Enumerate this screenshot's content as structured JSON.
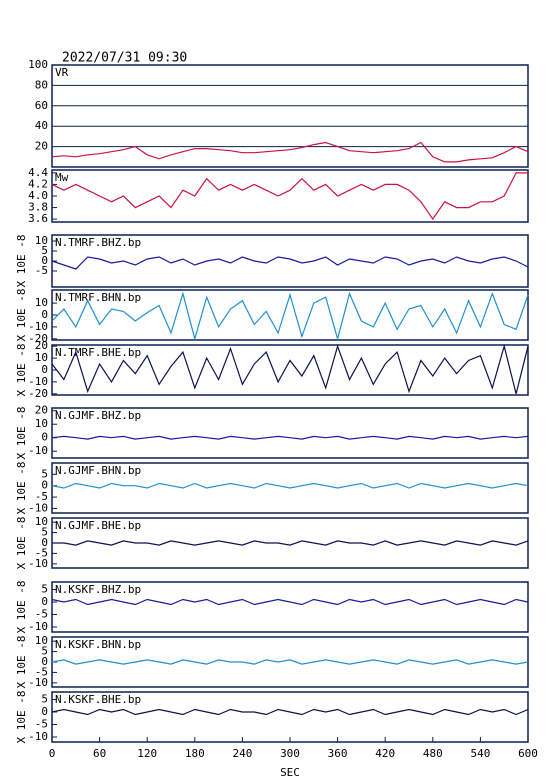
{
  "header": {
    "title": "2022/07/31 09:30",
    "xlabel": "SEC",
    "xlim": [
      0,
      600
    ],
    "xticks": [
      0,
      60,
      120,
      180,
      240,
      300,
      360,
      420,
      480,
      540,
      600
    ]
  },
  "chart_data": [
    {
      "type": "line",
      "label": "VR",
      "color": "#cc1144",
      "grid": true,
      "ylim": [
        0,
        100
      ],
      "yticks": [
        20,
        40,
        60,
        80,
        100
      ],
      "x": [
        0,
        15,
        30,
        45,
        60,
        75,
        90,
        105,
        120,
        135,
        150,
        165,
        180,
        195,
        210,
        225,
        240,
        255,
        270,
        285,
        300,
        315,
        330,
        345,
        360,
        375,
        390,
        405,
        420,
        435,
        450,
        465,
        480,
        495,
        510,
        525,
        540,
        555,
        570,
        585,
        600
      ],
      "values": [
        10,
        11,
        10,
        12,
        13,
        15,
        17,
        20,
        12,
        8,
        12,
        15,
        18,
        18,
        17,
        16,
        14,
        14,
        15,
        16,
        17,
        19,
        22,
        24,
        20,
        16,
        15,
        14,
        15,
        16,
        18,
        24,
        10,
        5,
        5,
        7,
        8,
        9,
        14,
        20,
        15
      ]
    },
    {
      "type": "line",
      "label": "Mw",
      "color": "#cc1144",
      "grid": false,
      "ylim": [
        3.55,
        4.45
      ],
      "yticks": [
        3.6,
        3.8,
        {
          "value": 4.0,
          "label": "4.0"
        },
        4.2,
        4.4
      ],
      "x": [
        0,
        15,
        30,
        45,
        60,
        75,
        90,
        105,
        120,
        135,
        150,
        165,
        180,
        195,
        210,
        225,
        240,
        255,
        270,
        285,
        300,
        315,
        330,
        345,
        360,
        375,
        390,
        405,
        420,
        435,
        450,
        465,
        480,
        495,
        510,
        525,
        540,
        555,
        570,
        585,
        600
      ],
      "values": [
        4.2,
        4.1,
        4.2,
        4.1,
        4.0,
        3.9,
        4.0,
        3.8,
        3.9,
        4.0,
        3.8,
        4.1,
        4.0,
        4.3,
        4.1,
        4.2,
        4.1,
        4.2,
        4.1,
        4.0,
        4.1,
        4.3,
        4.1,
        4.2,
        4.0,
        4.1,
        4.2,
        4.1,
        4.2,
        4.2,
        4.1,
        3.9,
        3.6,
        3.9,
        3.8,
        3.8,
        3.9,
        3.9,
        4.0,
        4.4,
        4.4
      ]
    },
    {
      "type": "line",
      "label": "N.TMRF.BHZ.bp",
      "ylabel": "X 10E -8",
      "color": "#1a1aa0",
      "grid": false,
      "ylim": [
        -13,
        13
      ],
      "yticks": [
        -5,
        0,
        5,
        10
      ],
      "x": [
        0,
        15,
        30,
        45,
        60,
        75,
        90,
        105,
        120,
        135,
        150,
        165,
        180,
        195,
        210,
        225,
        240,
        255,
        270,
        285,
        300,
        315,
        330,
        345,
        360,
        375,
        390,
        405,
        420,
        435,
        450,
        465,
        480,
        495,
        510,
        525,
        540,
        555,
        570,
        585,
        600
      ],
      "values": [
        0,
        -2,
        -4,
        2,
        1,
        -1,
        0,
        -2,
        1,
        2,
        -1,
        1,
        -2,
        0,
        1,
        -1,
        2,
        0,
        -1,
        2,
        1,
        -1,
        0,
        2,
        -2,
        1,
        0,
        -1,
        2,
        1,
        -2,
        0,
        1,
        -1,
        2,
        0,
        -1,
        1,
        2,
        0,
        -3
      ]
    },
    {
      "type": "line",
      "label": "N.TMRF.BHN.bp",
      "ylabel": "X 10E -8",
      "color": "#2090d0",
      "grid": false,
      "ylim": [
        -21,
        21
      ],
      "yticks": [
        -20,
        -10,
        0,
        10
      ],
      "x": [
        0,
        15,
        30,
        45,
        60,
        75,
        90,
        105,
        120,
        135,
        150,
        165,
        180,
        195,
        210,
        225,
        240,
        255,
        270,
        285,
        300,
        315,
        330,
        345,
        360,
        375,
        390,
        405,
        420,
        435,
        450,
        465,
        480,
        495,
        510,
        525,
        540,
        555,
        570,
        585,
        600
      ],
      "values": [
        -5,
        5,
        -10,
        12,
        -8,
        5,
        3,
        -5,
        2,
        8,
        -15,
        18,
        -20,
        15,
        -10,
        5,
        12,
        -8,
        3,
        -15,
        17,
        -18,
        10,
        15,
        -20,
        18,
        -5,
        -10,
        10,
        -12,
        5,
        8,
        -10,
        5,
        -15,
        12,
        -10,
        18,
        -8,
        -12,
        17
      ]
    },
    {
      "type": "line",
      "label": "N.TMRF.BHE.bp",
      "ylabel": "X 10E -8",
      "color": "#101050",
      "grid": false,
      "ylim": [
        -21,
        21
      ],
      "yticks": [
        -20,
        -10,
        0,
        10,
        20
      ],
      "x": [
        0,
        15,
        30,
        45,
        60,
        75,
        90,
        105,
        120,
        135,
        150,
        165,
        180,
        195,
        210,
        225,
        240,
        255,
        270,
        285,
        300,
        315,
        330,
        345,
        360,
        375,
        390,
        405,
        420,
        435,
        450,
        465,
        480,
        495,
        510,
        525,
        540,
        555,
        570,
        585,
        600
      ],
      "values": [
        5,
        -8,
        15,
        -18,
        5,
        -10,
        8,
        -3,
        12,
        -12,
        3,
        15,
        -15,
        10,
        -8,
        18,
        -12,
        5,
        15,
        -10,
        8,
        -5,
        12,
        -15,
        20,
        -8,
        10,
        -12,
        5,
        15,
        -18,
        8,
        -5,
        10,
        -3,
        8,
        12,
        -15,
        20,
        -20,
        20
      ]
    },
    {
      "type": "line",
      "label": "N.GJMF.BHZ.bp",
      "ylabel": "X 10E -8",
      "color": "#1a1aa0",
      "grid": false,
      "ylim": [
        -15,
        22
      ],
      "yticks": [
        -10,
        0,
        10,
        20
      ],
      "x": [
        0,
        15,
        30,
        45,
        60,
        75,
        90,
        105,
        120,
        135,
        150,
        165,
        180,
        195,
        210,
        225,
        240,
        255,
        270,
        285,
        300,
        315,
        330,
        345,
        360,
        375,
        390,
        405,
        420,
        435,
        450,
        465,
        480,
        495,
        510,
        525,
        540,
        555,
        570,
        585,
        600
      ],
      "values": [
        0,
        1,
        0,
        -1,
        1,
        0,
        1,
        -1,
        0,
        1,
        -1,
        0,
        1,
        0,
        -1,
        1,
        0,
        -1,
        0,
        1,
        0,
        -1,
        1,
        0,
        1,
        -1,
        0,
        1,
        0,
        -1,
        1,
        0,
        -1,
        1,
        0,
        1,
        -1,
        0,
        1,
        0,
        1
      ]
    },
    {
      "type": "line",
      "label": "N.GJMF.BHN.bp",
      "ylabel": "X 10E -8",
      "color": "#2090d0",
      "grid": false,
      "ylim": [
        -12,
        10
      ],
      "yticks": [
        -10,
        -5,
        0,
        5
      ],
      "x": [
        0,
        15,
        30,
        45,
        60,
        75,
        90,
        105,
        120,
        135,
        150,
        165,
        180,
        195,
        210,
        225,
        240,
        255,
        270,
        285,
        300,
        315,
        330,
        345,
        360,
        375,
        390,
        405,
        420,
        435,
        450,
        465,
        480,
        495,
        510,
        525,
        540,
        555,
        570,
        585,
        600
      ],
      "values": [
        0,
        -1,
        1,
        0,
        -1,
        1,
        0,
        0,
        -1,
        1,
        0,
        -1,
        1,
        -1,
        0,
        1,
        0,
        -1,
        1,
        0,
        -1,
        0,
        1,
        0,
        -1,
        0,
        1,
        -1,
        0,
        1,
        -1,
        1,
        0,
        -1,
        0,
        1,
        0,
        -1,
        0,
        1,
        0
      ]
    },
    {
      "type": "line",
      "label": "N.GJMF.BHE.bp",
      "ylabel": "X 10E -8",
      "color": "#101050",
      "grid": false,
      "ylim": [
        -12,
        12
      ],
      "yticks": [
        -10,
        -5,
        0,
        5,
        10
      ],
      "x": [
        0,
        15,
        30,
        45,
        60,
        75,
        90,
        105,
        120,
        135,
        150,
        165,
        180,
        195,
        210,
        225,
        240,
        255,
        270,
        285,
        300,
        315,
        330,
        345,
        360,
        375,
        390,
        405,
        420,
        435,
        450,
        465,
        480,
        495,
        510,
        525,
        540,
        555,
        570,
        585,
        600
      ],
      "values": [
        0,
        0,
        -1,
        1,
        0,
        -1,
        1,
        0,
        0,
        -1,
        1,
        0,
        -1,
        0,
        1,
        0,
        -1,
        1,
        0,
        0,
        -1,
        1,
        0,
        -1,
        1,
        0,
        0,
        -1,
        1,
        -1,
        0,
        1,
        0,
        -1,
        1,
        0,
        -1,
        1,
        0,
        -1,
        1
      ]
    },
    {
      "type": "line",
      "label": "N.KSKF.BHZ.bp",
      "ylabel": "X 10E -8",
      "color": "#1a1aa0",
      "grid": false,
      "ylim": [
        -12,
        8
      ],
      "yticks": [
        -10,
        -5,
        0,
        5
      ],
      "x": [
        0,
        15,
        30,
        45,
        60,
        75,
        90,
        105,
        120,
        135,
        150,
        165,
        180,
        195,
        210,
        225,
        240,
        255,
        270,
        285,
        300,
        315,
        330,
        345,
        360,
        375,
        390,
        405,
        420,
        435,
        450,
        465,
        480,
        495,
        510,
        525,
        540,
        555,
        570,
        585,
        600
      ],
      "values": [
        1,
        0,
        1,
        -1,
        0,
        1,
        0,
        -1,
        1,
        0,
        -1,
        1,
        0,
        1,
        -1,
        0,
        1,
        -1,
        0,
        1,
        0,
        -1,
        1,
        0,
        -1,
        1,
        0,
        1,
        -1,
        0,
        1,
        -1,
        0,
        1,
        -1,
        0,
        1,
        0,
        -1,
        1,
        0
      ]
    },
    {
      "type": "line",
      "label": "N.KSKF.BHN.bp",
      "ylabel": "X 10E -8",
      "color": "#2090d0",
      "grid": false,
      "ylim": [
        -12,
        12
      ],
      "yticks": [
        -10,
        -5,
        0,
        5,
        10
      ],
      "x": [
        0,
        15,
        30,
        45,
        60,
        75,
        90,
        105,
        120,
        135,
        150,
        165,
        180,
        195,
        210,
        225,
        240,
        255,
        270,
        285,
        300,
        315,
        330,
        345,
        360,
        375,
        390,
        405,
        420,
        435,
        450,
        465,
        480,
        495,
        510,
        525,
        540,
        555,
        570,
        585,
        600
      ],
      "values": [
        0,
        1,
        -1,
        0,
        1,
        0,
        -1,
        0,
        1,
        0,
        -1,
        1,
        0,
        -1,
        1,
        0,
        0,
        -1,
        1,
        0,
        1,
        -1,
        0,
        1,
        0,
        -1,
        0,
        1,
        0,
        -1,
        1,
        0,
        -1,
        0,
        1,
        -1,
        0,
        1,
        0,
        -1,
        0
      ]
    },
    {
      "type": "line",
      "label": "N.KSKF.BHE.bp",
      "ylabel": "X 10E -8",
      "color": "#101050",
      "grid": false,
      "ylim": [
        -12,
        8
      ],
      "yticks": [
        -10,
        -5,
        0,
        5
      ],
      "x": [
        0,
        15,
        30,
        45,
        60,
        75,
        90,
        105,
        120,
        135,
        150,
        165,
        180,
        195,
        210,
        225,
        240,
        255,
        270,
        285,
        300,
        315,
        330,
        345,
        360,
        375,
        390,
        405,
        420,
        435,
        450,
        465,
        480,
        495,
        510,
        525,
        540,
        555,
        570,
        585,
        600
      ],
      "values": [
        0,
        1,
        0,
        -1,
        1,
        0,
        1,
        -1,
        0,
        1,
        0,
        -1,
        1,
        0,
        -1,
        1,
        0,
        0,
        -1,
        1,
        0,
        -1,
        1,
        0,
        1,
        -1,
        0,
        1,
        -1,
        0,
        1,
        0,
        -1,
        1,
        0,
        -1,
        1,
        0,
        1,
        -1,
        1
      ]
    }
  ]
}
